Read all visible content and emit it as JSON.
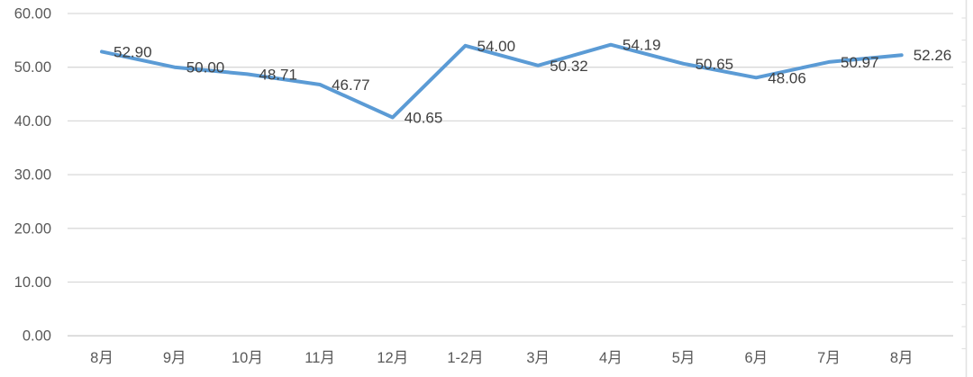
{
  "chart_data": {
    "type": "line",
    "title": "",
    "xlabel": "",
    "ylabel": "",
    "categories": [
      "8月",
      "9月",
      "10月",
      "11月",
      "12月",
      "1-2月",
      "3月",
      "4月",
      "5月",
      "6月",
      "7月",
      "8月"
    ],
    "series": [
      {
        "name": "",
        "values": [
          52.9,
          50.0,
          48.71,
          46.77,
          40.65,
          54.0,
          50.32,
          54.19,
          50.65,
          48.06,
          50.97,
          52.26
        ],
        "data_labels": [
          "52.90",
          "50.00",
          "48.71",
          "46.77",
          "40.65",
          "54.00",
          "50.32",
          "54.19",
          "50.65",
          "48.06",
          "50.97",
          "52.26"
        ]
      }
    ],
    "y_ticks": [
      {
        "value": 60,
        "label": "60.00"
      },
      {
        "value": 50,
        "label": "50.00"
      },
      {
        "value": 40,
        "label": "40.00"
      },
      {
        "value": 30,
        "label": "30.00"
      },
      {
        "value": 20,
        "label": "20.00"
      },
      {
        "value": 10,
        "label": "10.00"
      },
      {
        "value": 0,
        "label": "0.00"
      }
    ],
    "ylim": [
      0,
      60
    ],
    "grid": true,
    "legend_position": "none",
    "colors": {
      "line": "#5B9BD5",
      "gridline": "#D9D9D9",
      "baseline": "#CFCFCF",
      "axis_text": "#595959",
      "data_label_text": "#404040",
      "background": "#FFFFFF",
      "adjacent_edge": "#E2E2E2"
    }
  }
}
